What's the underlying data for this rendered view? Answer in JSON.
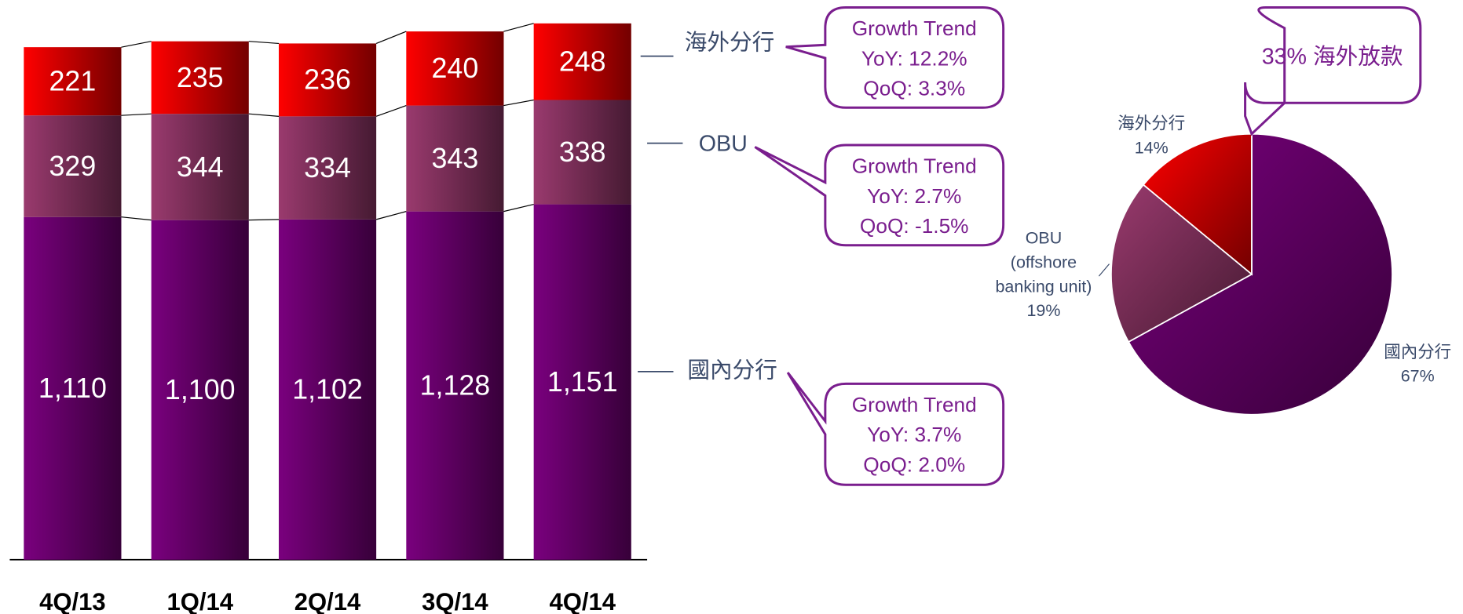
{
  "chart_data": [
    {
      "type": "stacked_bar",
      "categories": [
        "4Q/13",
        "1Q/14",
        "2Q/14",
        "3Q/14",
        "4Q/14"
      ],
      "series": [
        {
          "name": "國內分行",
          "color": "#7a007e",
          "values": [
            1110,
            1100,
            1102,
            1128,
            1151
          ],
          "value_labels": [
            "1,110",
            "1,100",
            "1,102",
            "1,128",
            "1,151"
          ],
          "annotation": [
            "Growth Trend",
            "YoY: 3.7%",
            "QoQ: 2.0%"
          ]
        },
        {
          "name": "OBU",
          "color": "#9a3a6e",
          "values": [
            329,
            344,
            334,
            343,
            338
          ],
          "annotation": [
            "Growth Trend",
            "YoY: 2.7%",
            "QoQ: -1.5%"
          ]
        },
        {
          "name": "海外分行",
          "color": "#ff0000",
          "values": [
            221,
            235,
            236,
            240,
            248
          ],
          "annotation": [
            "Growth Trend",
            "YoY: 12.2%",
            "QoQ: 3.3%"
          ]
        }
      ]
    },
    {
      "type": "pie",
      "categories": [
        "國內分行",
        "OBU\n(offshore\nbanking unit)",
        "海外分行"
      ],
      "values": [
        67,
        19,
        14
      ],
      "value_labels": [
        "67%",
        "19%",
        "14%"
      ],
      "colors": [
        "#7a007e",
        "#9a3a6e",
        "#ff0000"
      ],
      "annotation": "33% 海外放款"
    }
  ]
}
